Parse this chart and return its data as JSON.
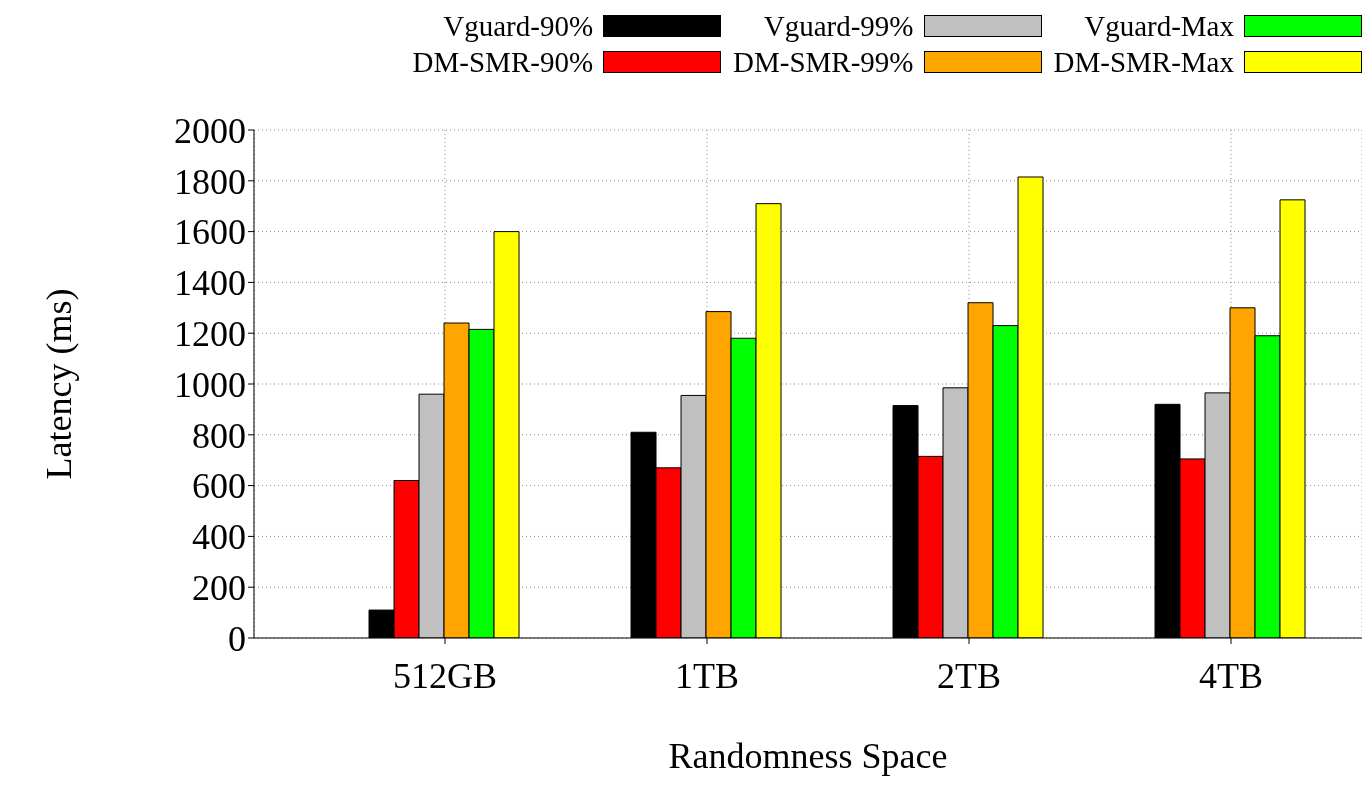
{
  "chart_data": {
    "type": "bar",
    "xlabel": "Randomness Space",
    "ylabel": "Latency (ms)",
    "categories": [
      "512GB",
      "1TB",
      "2TB",
      "4TB"
    ],
    "series": [
      {
        "name": "Vguard-90%",
        "color": "#000000",
        "values": [
          110,
          810,
          915,
          920
        ]
      },
      {
        "name": "DM-SMR-90%",
        "color": "#ff0000",
        "values": [
          620,
          670,
          715,
          705
        ]
      },
      {
        "name": "Vguard-99%",
        "color": "#c0c0c0",
        "values": [
          960,
          955,
          985,
          965
        ]
      },
      {
        "name": "DM-SMR-99%",
        "color": "#ffa500",
        "values": [
          1240,
          1285,
          1320,
          1300
        ]
      },
      {
        "name": "Vguard-Max",
        "color": "#00ff00",
        "values": [
          1215,
          1180,
          1230,
          1190
        ]
      },
      {
        "name": "DM-SMR-Max",
        "color": "#ffff00",
        "values": [
          1600,
          1710,
          1815,
          1725
        ]
      }
    ],
    "ylim": [
      0,
      2000
    ],
    "yticks": [
      0,
      200,
      400,
      600,
      800,
      1000,
      1200,
      1400,
      1600,
      1800,
      2000
    ],
    "grid": true,
    "legend": "top right"
  }
}
